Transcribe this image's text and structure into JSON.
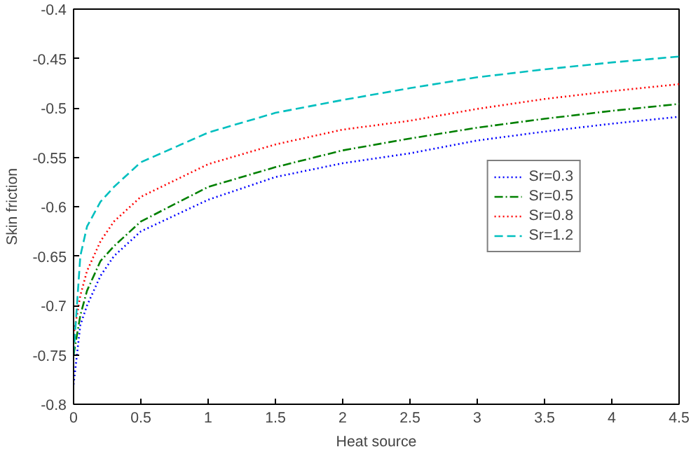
{
  "chart_data": {
    "type": "line",
    "xlabel": "Heat source",
    "ylabel": "Skin friction",
    "x": [
      0,
      0.05,
      0.1,
      0.2,
      0.3,
      0.5,
      1,
      1.5,
      2,
      2.5,
      3,
      3.5,
      4,
      4.5
    ],
    "series": [
      {
        "name": "Sr=0.3",
        "color": "#0000ff",
        "line_style": "dotted",
        "values": [
          -0.78,
          -0.72,
          -0.7,
          -0.67,
          -0.65,
          -0.625,
          -0.593,
          -0.57,
          -0.556,
          -0.546,
          -0.533,
          -0.524,
          -0.516,
          -0.509
        ]
      },
      {
        "name": "Sr=0.5",
        "color": "#008000",
        "line_style": "dashdot",
        "values": [
          -0.75,
          -0.71,
          -0.685,
          -0.655,
          -0.64,
          -0.615,
          -0.58,
          -0.56,
          -0.543,
          -0.531,
          -0.52,
          -0.511,
          -0.503,
          -0.496
        ]
      },
      {
        "name": "Sr=0.8",
        "color": "#ff0000",
        "line_style": "dotted",
        "values": [
          -0.73,
          -0.69,
          -0.665,
          -0.635,
          -0.615,
          -0.59,
          -0.557,
          -0.537,
          -0.522,
          -0.513,
          -0.501,
          -0.491,
          -0.483,
          -0.476
        ]
      },
      {
        "name": "Sr=1.2",
        "color": "#00bfbf",
        "line_style": "dashed",
        "values": [
          -0.75,
          -0.65,
          -0.62,
          -0.595,
          -0.58,
          -0.555,
          -0.525,
          -0.505,
          -0.492,
          -0.48,
          -0.469,
          -0.461,
          -0.454,
          -0.448
        ]
      }
    ],
    "xlim": [
      0,
      4.5
    ],
    "ylim": [
      -0.8,
      -0.4
    ],
    "xticks": [
      0,
      0.5,
      1,
      1.5,
      2,
      2.5,
      3,
      3.5,
      4,
      4.5
    ],
    "yticks": [
      -0.8,
      -0.75,
      -0.7,
      -0.65,
      -0.6,
      -0.55,
      -0.5,
      -0.45,
      -0.4
    ],
    "grid": false,
    "legend": "center right",
    "marker": "none"
  }
}
